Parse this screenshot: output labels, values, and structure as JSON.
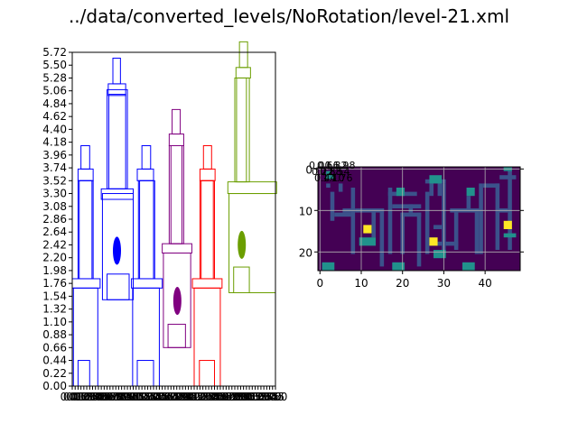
{
  "figure": {
    "title": "../data/converted_levels/NoRotation/level-21.xml"
  },
  "chart_data": [
    {
      "type": "level-structure-plot",
      "ylim": [
        0.0,
        5.72
      ],
      "yticks": [
        "0.00",
        "0.22",
        "0.44",
        "0.66",
        "0.88",
        "1.10",
        "1.32",
        "1.54",
        "1.76",
        "1.98",
        "2.20",
        "2.42",
        "2.64",
        "2.86",
        "3.08",
        "3.30",
        "3.52",
        "3.74",
        "3.96",
        "4.18",
        "4.40",
        "4.62",
        "4.84",
        "5.06",
        "5.28",
        "5.50",
        "5.72"
      ],
      "xlim": [
        0,
        3.5
      ],
      "xtick_note": "x tick labels overlap and are illegible in the original",
      "grid": false,
      "structures": [
        {
          "color": "#0000ff",
          "rects": [
            [
              0.02,
              0.0,
              0.44,
              1.68
            ],
            [
              0.1,
              0.0,
              0.3,
              0.44
            ],
            [
              0.0,
              1.68,
              0.48,
              1.84
            ],
            [
              0.1,
              1.84,
              0.36,
              3.52
            ],
            [
              0.12,
              1.84,
              0.34,
              3.52
            ],
            [
              0.1,
              3.52,
              0.36,
              3.72
            ],
            [
              0.15,
              3.72,
              0.3,
              4.12
            ]
          ],
          "ellipses": []
        },
        {
          "color": "#0000ff",
          "rects": [
            [
              0.52,
              1.48,
              1.05,
              3.3
            ],
            [
              0.6,
              1.48,
              0.98,
              1.92
            ],
            [
              0.5,
              3.2,
              1.05,
              3.38
            ],
            [
              0.6,
              3.38,
              0.95,
              5.08
            ],
            [
              0.63,
              3.38,
              0.92,
              5.0
            ],
            [
              0.62,
              4.98,
              0.92,
              5.18
            ],
            [
              0.7,
              5.18,
              0.83,
              5.62
            ]
          ],
          "ellipses": [
            [
              0.77,
              2.32,
              0.07,
              0.24,
              "#0000ff"
            ]
          ]
        },
        {
          "color": "#0000ff",
          "rects": [
            [
              1.04,
              0.0,
              1.5,
              1.68
            ],
            [
              1.12,
              0.0,
              1.4,
              0.44
            ],
            [
              1.02,
              1.68,
              1.55,
              1.84
            ],
            [
              1.14,
              1.84,
              1.42,
              3.52
            ],
            [
              1.16,
              1.84,
              1.4,
              3.52
            ],
            [
              1.12,
              3.52,
              1.4,
              3.72
            ],
            [
              1.2,
              3.72,
              1.35,
              4.12
            ]
          ],
          "ellipses": []
        },
        {
          "color": "#800080",
          "rects": [
            [
              1.57,
              0.66,
              2.04,
              2.28
            ],
            [
              1.65,
              0.66,
              1.95,
              1.06
            ],
            [
              1.55,
              2.28,
              2.06,
              2.44
            ],
            [
              1.67,
              2.44,
              1.92,
              4.12
            ],
            [
              1.7,
              2.44,
              1.89,
              4.12
            ],
            [
              1.67,
              4.12,
              1.92,
              4.32
            ],
            [
              1.72,
              4.32,
              1.86,
              4.74
            ]
          ],
          "ellipses": [
            [
              1.81,
              1.46,
              0.07,
              0.24,
              "#800080"
            ]
          ]
        },
        {
          "color": "#ff0000",
          "rects": [
            [
              2.1,
              0.0,
              2.55,
              1.68
            ],
            [
              2.19,
              0.0,
              2.45,
              0.44
            ],
            [
              2.07,
              1.68,
              2.58,
              1.84
            ],
            [
              2.2,
              1.84,
              2.45,
              3.52
            ],
            [
              2.22,
              1.84,
              2.43,
              3.52
            ],
            [
              2.2,
              3.52,
              2.46,
              3.72
            ],
            [
              2.26,
              3.72,
              2.4,
              4.12
            ]
          ],
          "ellipses": []
        },
        {
          "color": "#6b9e00",
          "rects": [
            [
              2.7,
              1.6,
              3.5,
              3.3
            ],
            [
              2.78,
              1.6,
              3.05,
              2.04
            ],
            [
              2.68,
              3.3,
              3.52,
              3.5
            ],
            [
              2.8,
              3.5,
              3.05,
              5.28
            ],
            [
              2.83,
              3.5,
              3.0,
              5.28
            ],
            [
              2.82,
              5.28,
              3.07,
              5.46
            ],
            [
              2.88,
              5.46,
              3.02,
              5.9
            ]
          ],
          "ellipses": [
            [
              2.92,
              2.42,
              0.07,
              0.24,
              "#6b9e00"
            ]
          ]
        }
      ]
    },
    {
      "type": "heatmap",
      "xticks": [
        "0",
        "10",
        "20",
        "30",
        "40"
      ],
      "yticks": [
        "0",
        "10",
        "20"
      ],
      "x_extent": [
        -0.5,
        48.5
      ],
      "y_extent": [
        -0.5,
        24.5
      ],
      "grid": true,
      "overlapping_tick_labels_note": "dense illegible labels near the top-left corner",
      "colormap": "viridis",
      "background": "#440154",
      "cells": [
        {
          "color": "#3b528b",
          "rects": [
            [
              2,
              4,
              3,
              5
            ],
            [
              5,
              4,
              6,
              6
            ],
            [
              3,
              6,
              4,
              13
            ],
            [
              8,
              5,
              9,
              21
            ],
            [
              6,
              10,
              8,
              11
            ],
            [
              4,
              11,
              8,
              12
            ],
            [
              9,
              10,
              14,
              11
            ],
            [
              13,
              10,
              14,
              17
            ],
            [
              14,
              10,
              16,
              11
            ],
            [
              15,
              10,
              16,
              24
            ],
            [
              17,
              5,
              18,
              21
            ],
            [
              17,
              6,
              24,
              7
            ],
            [
              18,
              9,
              25,
              10
            ],
            [
              22,
              9,
              23,
              11
            ],
            [
              20,
              11,
              21,
              21
            ],
            [
              20,
              11,
              25,
              12
            ],
            [
              24,
              11,
              25,
              24
            ],
            [
              26,
              6,
              27,
              21
            ],
            [
              26,
              3,
              31,
              4
            ],
            [
              27,
              4,
              28,
              7
            ],
            [
              29,
              4,
              30,
              7
            ],
            [
              30,
              4,
              31,
              21
            ],
            [
              28,
              14,
              30,
              15
            ],
            [
              27,
              18,
              34,
              19
            ],
            [
              33,
              10,
              34,
              20
            ],
            [
              32,
              10,
              39,
              11
            ],
            [
              36,
              7,
              37,
              10
            ],
            [
              38,
              10,
              39,
              21
            ],
            [
              39,
              4,
              40,
              21
            ],
            [
              40,
              4,
              44,
              5
            ],
            [
              43,
              4,
              44,
              20
            ],
            [
              43,
              10,
              46,
              11
            ],
            [
              46,
              0,
              47,
              20
            ],
            [
              44,
              2,
              48,
              3
            ],
            [
              45,
              0,
              47,
              1
            ]
          ]
        },
        {
          "color": "#21918c",
          "rects": [
            [
              2,
              1,
              3,
              3
            ],
            [
              3,
              2,
              4,
              3
            ],
            [
              19,
              5,
              21,
              7
            ],
            [
              27,
              2,
              30,
              4
            ],
            [
              36,
              5,
              38,
              7
            ],
            [
              45,
              0,
              47,
              1
            ],
            [
              10,
              17,
              14,
              19
            ],
            [
              28,
              20,
              31,
              22
            ],
            [
              1,
              23,
              4,
              25
            ],
            [
              18,
              23,
              21,
              25
            ],
            [
              35,
              23,
              38,
              25
            ],
            [
              45,
              16,
              48,
              17
            ]
          ]
        },
        {
          "color": "#fde725",
          "rects": [
            [
              11,
              14,
              13,
              16
            ],
            [
              27,
              17,
              29,
              19
            ],
            [
              45,
              13,
              47,
              15
            ]
          ]
        }
      ]
    }
  ]
}
